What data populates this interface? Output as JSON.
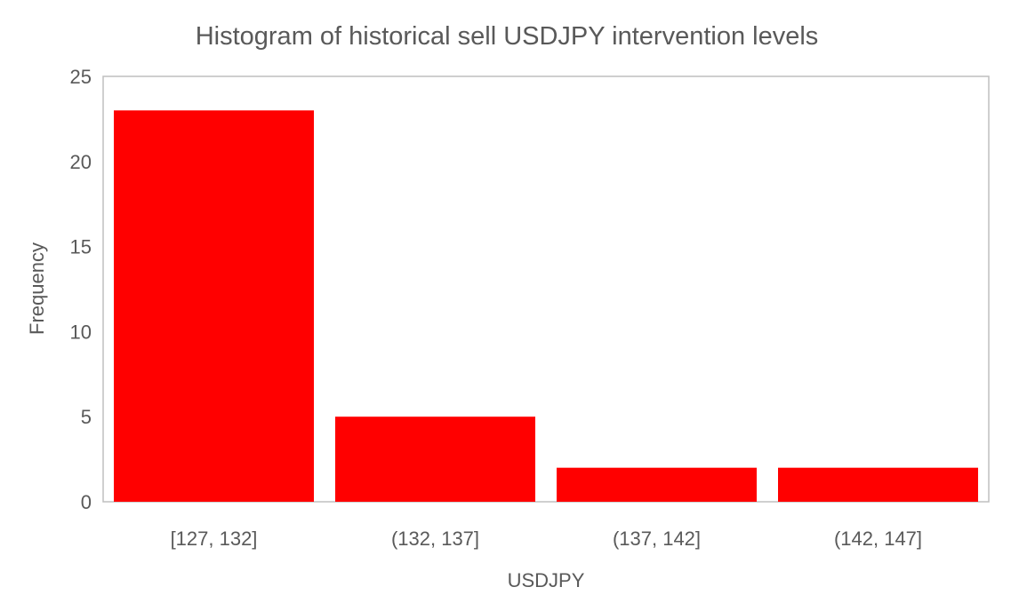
{
  "chart_data": {
    "type": "bar",
    "title": "Histogram of historical sell USDJPY intervention levels",
    "xlabel": "USDJPY",
    "ylabel": "Frequency",
    "categories": [
      "[127, 132]",
      "(132, 137]",
      "(137, 142]",
      "(142, 147]"
    ],
    "values": [
      23,
      5,
      2,
      2
    ],
    "ylim": [
      0,
      25
    ],
    "yticks": [
      0,
      5,
      10,
      15,
      20,
      25
    ],
    "grid": false,
    "legend": "none",
    "colors": {
      "bar": "#ff0000",
      "frame": "#bfbfbf",
      "text": "#595959"
    }
  }
}
